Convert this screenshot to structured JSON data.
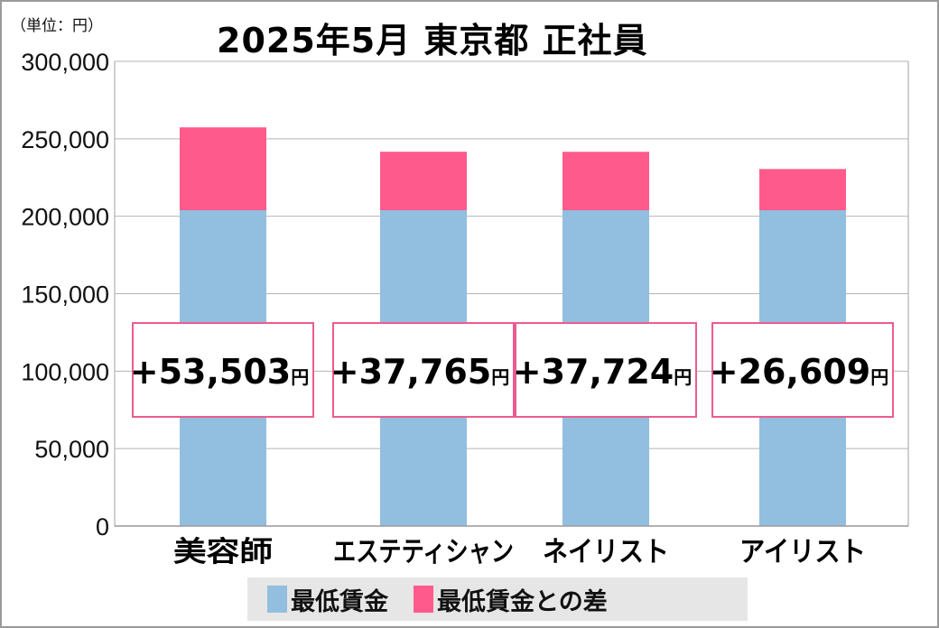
{
  "chart_data": {
    "type": "bar",
    "stacked": true,
    "title": "2025年5月 東京都 正社員",
    "unit_label": "（単位：円）",
    "categories": [
      "美容師",
      "エステティシャン",
      "ネイリスト",
      "アイリスト"
    ],
    "series": [
      {
        "name": "最低賃金",
        "color": "#92bedf",
        "values": [
          203883,
          203883,
          203883,
          203883
        ]
      },
      {
        "name": "最低賃金との差",
        "color": "#ff5a8c",
        "values": [
          53503,
          37765,
          37724,
          26609
        ]
      }
    ],
    "annotations": [
      "+53,503",
      "+37,765",
      "+37,724",
      "+26,609"
    ],
    "annotation_unit": "円",
    "ylim": [
      0,
      300000
    ],
    "yticks": [
      0,
      50000,
      100000,
      150000,
      200000,
      250000,
      300000
    ],
    "ytick_labels": [
      "0",
      "50,000",
      "100,000",
      "150,000",
      "200,000",
      "250,000",
      "300,000"
    ],
    "grid": true,
    "legend_position": "bottom"
  }
}
